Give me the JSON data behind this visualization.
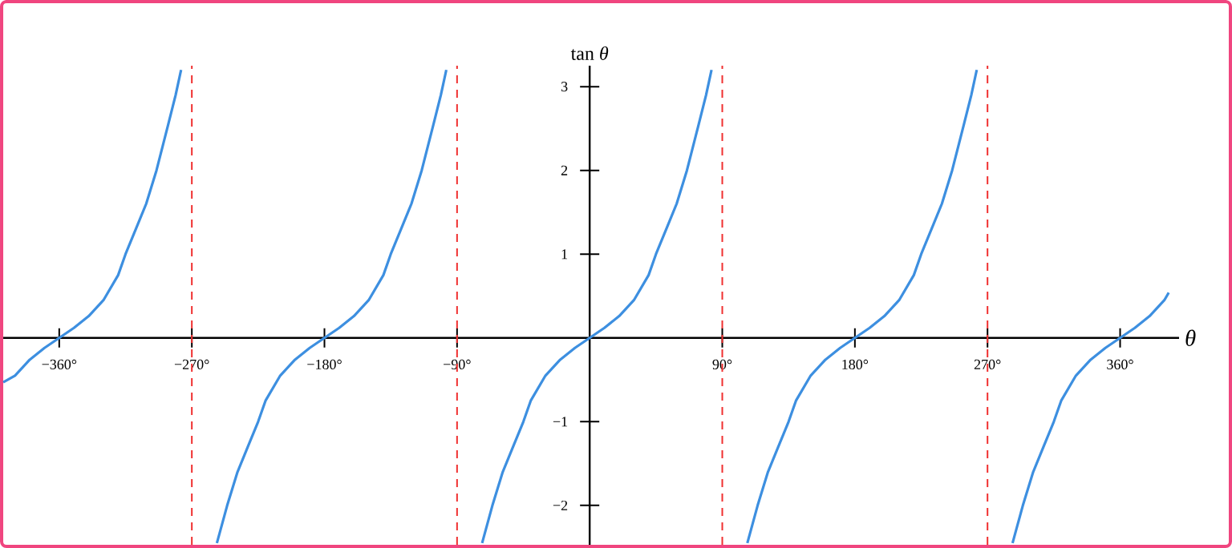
{
  "chart_data": {
    "type": "line",
    "xlabel": "θ",
    "ylabel": "tan *θ*",
    "xlim": [
      -398,
      400
    ],
    "ylim": [
      -2.47,
      3.25
    ],
    "xticks": [
      {
        "value": -360,
        "label": "−360°"
      },
      {
        "value": -270,
        "label": "−270°"
      },
      {
        "value": -180,
        "label": "−180°"
      },
      {
        "value": -90,
        "label": "−90°"
      },
      {
        "value": 90,
        "label": "90°"
      },
      {
        "value": 180,
        "label": "180°"
      },
      {
        "value": 270,
        "label": "270°"
      },
      {
        "value": 360,
        "label": "360°"
      }
    ],
    "yticks": [
      {
        "value": -2,
        "label": "−2"
      },
      {
        "value": -1,
        "label": "−1"
      },
      1,
      2,
      3
    ],
    "ref_lines": [
      {
        "axis": "x",
        "value": -270,
        "color": "#f03030",
        "line_style": "dashed"
      },
      {
        "axis": "x",
        "value": -90,
        "color": "#f03030",
        "line_style": "dashed"
      },
      {
        "axis": "x",
        "value": 90,
        "color": "#f03030",
        "line_style": "dashed"
      },
      {
        "axis": "x",
        "value": 270,
        "color": "#f03030",
        "line_style": "dashed"
      }
    ],
    "series": [
      {
        "color": "#3d8fe0",
        "x": [
          -398,
          -390,
          -380,
          -370,
          -360,
          -350,
          -340,
          -330,
          -320,
          -315,
          -308,
          -301,
          -294,
          -286,
          -281,
          -277.3,
          -270,
          -253,
          -246,
          -239,
          -232,
          -225,
          -220,
          -210,
          -200,
          -190,
          -180,
          -170,
          -160,
          -150,
          -140,
          -135,
          -128,
          -121,
          -114,
          -106,
          -101,
          -97.3,
          -90,
          -73,
          -66,
          -59,
          -52,
          -45,
          -40,
          -30,
          -20,
          -10,
          0,
          10,
          20,
          30,
          40,
          45,
          52,
          59,
          66,
          74,
          79,
          82.7,
          90,
          107,
          114,
          121,
          128,
          135,
          140,
          150,
          160,
          170,
          180,
          190,
          200,
          210,
          220,
          225,
          232,
          239,
          246,
          254,
          259,
          262.7,
          270,
          287,
          294,
          301,
          308,
          315,
          320,
          330,
          340,
          350,
          360,
          370,
          380,
          390,
          393
        ],
        "values": [
          -0.53,
          -0.45,
          -0.26,
          -0.12,
          0,
          0.12,
          0.26,
          0.45,
          0.75,
          1,
          1.3,
          1.6,
          2,
          2.55,
          2.9,
          3.2,
          null,
          -2.45,
          -2,
          -1.6,
          -1.3,
          -1,
          -0.75,
          -0.45,
          -0.26,
          -0.12,
          0,
          0.12,
          0.26,
          0.45,
          0.75,
          1,
          1.3,
          1.6,
          2,
          2.55,
          2.9,
          3.2,
          null,
          -2.45,
          -2,
          -1.6,
          -1.3,
          -1,
          -0.75,
          -0.45,
          -0.26,
          -0.12,
          0,
          0.12,
          0.26,
          0.45,
          0.75,
          1,
          1.3,
          1.6,
          2,
          2.55,
          2.9,
          3.2,
          null,
          -2.45,
          -2,
          -1.6,
          -1.3,
          -1,
          -0.75,
          -0.45,
          -0.26,
          -0.12,
          0,
          0.12,
          0.26,
          0.45,
          0.75,
          1,
          1.3,
          1.6,
          2,
          2.55,
          2.9,
          3.2,
          null,
          -2.45,
          -2,
          -1.6,
          -1.3,
          -1,
          -0.75,
          -0.45,
          -0.26,
          -0.12,
          0,
          0.12,
          0.26,
          0.45,
          0.54
        ]
      }
    ]
  }
}
